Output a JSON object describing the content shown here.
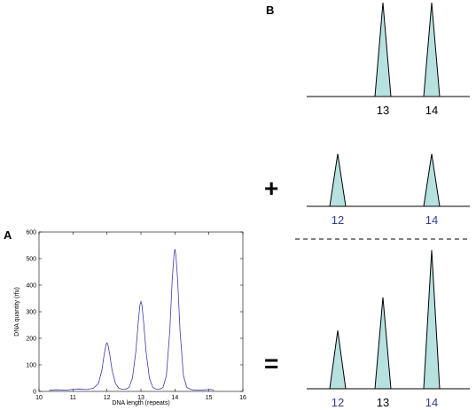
{
  "panel_labels": {
    "a": "A",
    "b": "B"
  },
  "operators": {
    "plus": "+",
    "equals": "="
  },
  "colors": {
    "peak_fill": "#b6e1df",
    "peak_stroke": "#000000",
    "curve": "#3b3bb0",
    "label_dark": "#000000",
    "label_blue": "#2f3f8f"
  },
  "chart_data": [
    {
      "type": "line",
      "title": "",
      "xlabel": "DNA length (repeats)",
      "ylabel": "DNA quantity (rfu)",
      "xlim": [
        10,
        16
      ],
      "ylim": [
        0,
        600
      ],
      "xticks": [
        "10",
        "11",
        "12",
        "13",
        "14",
        "15",
        "16"
      ],
      "yticks": [
        "0",
        "100",
        "200",
        "300",
        "400",
        "500",
        "600"
      ],
      "grid": false,
      "series": [
        {
          "x": [
            10.3,
            10.5,
            10.8,
            11.0,
            11.2,
            11.4,
            11.6,
            11.75,
            11.85,
            11.92,
            11.97,
            12.0,
            12.03,
            12.08,
            12.15,
            12.25,
            12.35,
            12.45,
            12.55,
            12.65,
            12.75,
            12.85,
            12.92,
            12.97,
            13.0,
            13.03,
            13.08,
            13.15,
            13.25,
            13.35,
            13.45,
            13.55,
            13.65,
            13.75,
            13.85,
            13.92,
            13.97,
            14.0,
            14.03,
            14.08,
            14.15,
            14.25,
            14.35,
            14.5,
            14.7,
            14.9,
            15.05,
            15.15
          ],
          "y": [
            4,
            6,
            5,
            8,
            9,
            7,
            12,
            30,
            80,
            140,
            175,
            183,
            175,
            140,
            80,
            30,
            12,
            8,
            8,
            15,
            50,
            150,
            260,
            325,
            338,
            325,
            260,
            150,
            50,
            15,
            8,
            8,
            15,
            60,
            230,
            420,
            510,
            536,
            510,
            420,
            230,
            60,
            15,
            6,
            5,
            6,
            8,
            4
          ]
        }
      ]
    },
    {
      "type": "area",
      "categories": [
        "13",
        "14"
      ],
      "values": [
        1,
        1
      ]
    },
    {
      "type": "area",
      "categories": [
        "12",
        "14"
      ],
      "values": [
        0.65,
        0.65
      ]
    },
    {
      "type": "area",
      "categories": [
        "12",
        "13",
        "14"
      ],
      "values": [
        0.37,
        0.58,
        0.88
      ]
    }
  ]
}
